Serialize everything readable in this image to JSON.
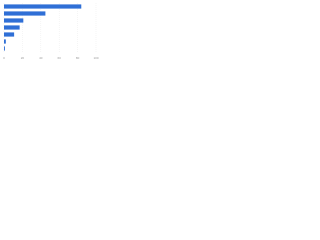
{
  "chart_data": {
    "type": "bar",
    "orientation": "horizontal",
    "categories": [
      null,
      null,
      null,
      null,
      null,
      null,
      null
    ],
    "values": [
      84,
      45,
      21,
      17,
      11,
      2,
      1
    ],
    "color": "#2f6fd6",
    "xlim": [
      0,
      100
    ],
    "xticks": [
      0,
      20,
      40,
      60,
      80,
      100
    ],
    "grid": true
  }
}
